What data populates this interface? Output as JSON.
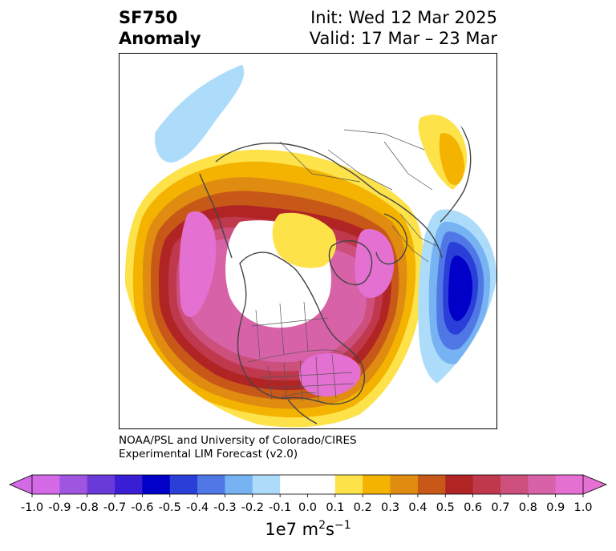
{
  "title": {
    "left_line1": "SF750",
    "left_line2": "Anomaly",
    "right_line1": "Init: Wed 12 Mar 2025",
    "right_line2": "Valid: 17 Mar – 23 Mar"
  },
  "credit": {
    "line1": "NOAA/PSL and University of Colorado/CIRES",
    "line2": "Experimental LIM Forecast (v2.0)"
  },
  "colorbar": {
    "ticks": [
      "-1.0",
      "-0.9",
      "-0.8",
      "-0.7",
      "-0.6",
      "-0.5",
      "-0.4",
      "-0.3",
      "-0.2",
      "-0.1",
      "0.0",
      "0.1",
      "0.2",
      "0.3",
      "0.4",
      "0.5",
      "0.6",
      "0.7",
      "0.8",
      "0.9",
      "1.0"
    ],
    "colors": [
      "#d56ae6",
      "#9f55e0",
      "#6a3ad8",
      "#3a1ed3",
      "#0000c8",
      "#2a3ed8",
      "#4f78e6",
      "#77b2f2",
      "#addcfa",
      "#ffffff",
      "#ffffff",
      "#fde24a",
      "#f3b300",
      "#e08c10",
      "#c85818",
      "#b02424",
      "#c0384c",
      "#cc4f7c",
      "#d862a8",
      "#e470d2"
    ],
    "units_main": "1e7 m",
    "units_sup1": "2",
    "units_s": "s",
    "units_sup2": "−1"
  },
  "map": {
    "projection": "north-polar-stereographic",
    "field": "SF750 anomaly",
    "features": [
      "coastlines",
      "country-borders",
      "us-state-borders",
      "canada-province-borders"
    ]
  }
}
